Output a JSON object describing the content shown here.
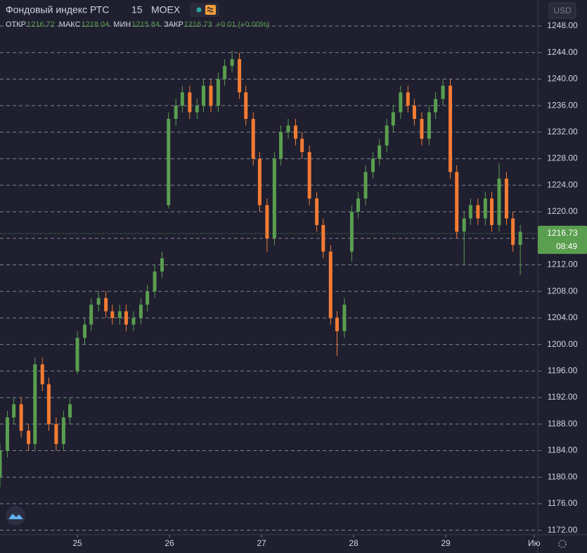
{
  "chart_data": {
    "type": "candlestick",
    "title": "Фондовый индекс РТС",
    "interval": "15",
    "exchange": "MOEX",
    "currency": "USD",
    "legend": {
      "open_label": "ОТКР",
      "open": 1216.72,
      "high_label": "МАКС",
      "high": 1218.04,
      "low_label": "МИН",
      "low": 1215.84,
      "close_label": "ЗАКР",
      "close": 1216.73,
      "change": "+0.01 (+0.00%)"
    },
    "last_price": 1216.73,
    "last_time": "08:49",
    "up_color": "#5a9e4f",
    "down_color": "#f47b32",
    "grid": true,
    "xlim": [
      24.16,
      30.0
    ],
    "xticks": [
      25,
      26,
      27,
      28,
      29,
      {
        "value": 29.96,
        "label": "Ию"
      }
    ],
    "ylim": [
      1171.33,
      1251.92
    ],
    "yticks": [
      {
        "value": 1172,
        "label": "1172.00"
      },
      {
        "value": 1176,
        "label": "1176.00"
      },
      {
        "value": 1180,
        "label": "1180.00"
      },
      {
        "value": 1184,
        "label": "1184.00"
      },
      {
        "value": 1188,
        "label": "1188.00"
      },
      {
        "value": 1192,
        "label": "1192.00"
      },
      {
        "value": 1196,
        "label": "1196.00"
      },
      {
        "value": 1200,
        "label": "1200.00"
      },
      {
        "value": 1204,
        "label": "1204.00"
      },
      {
        "value": 1208,
        "label": "1208.00"
      },
      {
        "value": 1212,
        "label": "1212.00"
      },
      {
        "value": 1216,
        "label": "1216.00"
      },
      {
        "value": 1220,
        "label": "1220.00"
      },
      {
        "value": 1224,
        "label": "1224.00"
      },
      {
        "value": 1228,
        "label": "1228.00"
      },
      {
        "value": 1232,
        "label": "1232.00"
      },
      {
        "value": 1236,
        "label": "1236.00"
      },
      {
        "value": 1240,
        "label": "1240.00"
      },
      {
        "value": 1244,
        "label": "1244.00"
      },
      {
        "value": 1248,
        "label": "1248.00"
      }
    ],
    "x": [
      24.16,
      24.24,
      24.31,
      24.39,
      24.47,
      24.54,
      24.62,
      24.69,
      24.77,
      24.85,
      24.92,
      25.0,
      25.08,
      25.15,
      25.23,
      25.31,
      25.38,
      25.46,
      25.53,
      25.61,
      25.69,
      25.76,
      25.84,
      25.92,
      25.99,
      26.07,
      26.14,
      26.22,
      26.3,
      26.37,
      26.45,
      26.53,
      26.6,
      26.68,
      26.76,
      26.83,
      26.91,
      26.98,
      27.06,
      27.14,
      27.21,
      27.29,
      27.37,
      27.44,
      27.52,
      27.6,
      27.67,
      27.75,
      27.82,
      27.9,
      27.98,
      28.05,
      28.13,
      28.21,
      28.28,
      28.36,
      28.43,
      28.51,
      28.59,
      28.66,
      28.74,
      28.82,
      28.89,
      28.97,
      29.05,
      29.12,
      29.2,
      29.27,
      29.35,
      29.43,
      29.5,
      29.58,
      29.66,
      29.73,
      29.81
    ],
    "open": [
      1180,
      1184,
      1189,
      1191,
      1187,
      1185,
      1197,
      1194,
      1188,
      1185,
      1189,
      1196,
      1201,
      1203,
      1206,
      1207,
      1205,
      1204,
      1205,
      1203,
      1204,
      1206,
      1208,
      1211,
      1221,
      1234,
      1236,
      1238,
      1235,
      1236,
      1239,
      1236,
      1240,
      1242,
      1243,
      1238,
      1234,
      1228,
      1221,
      1216,
      1228,
      1232,
      1233,
      1231,
      1229,
      1222,
      1218,
      1214,
      1204,
      1202,
      1214,
      1220,
      1222,
      1226,
      1228,
      1230,
      1233,
      1235,
      1238,
      1236,
      1234,
      1231,
      1235,
      1237,
      1239,
      1226,
      1217,
      1219,
      1221,
      1219,
      1222,
      1218,
      1225,
      1219,
      1215
    ],
    "high": [
      1185,
      1190,
      1192,
      1192,
      1188,
      1198,
      1198,
      1195,
      1189,
      1190,
      1192,
      1202,
      1204,
      1207,
      1208,
      1208,
      1206,
      1206,
      1206,
      1205,
      1207,
      1209,
      1212,
      1214,
      1235,
      1237,
      1239,
      1239,
      1237,
      1240,
      1240,
      1241,
      1243,
      1244.3,
      1244,
      1239,
      1235,
      1229,
      1222,
      1229,
      1233,
      1234,
      1234,
      1232,
      1230,
      1223,
      1219,
      1215,
      1205,
      1207,
      1221,
      1223,
      1227,
      1229,
      1231,
      1234,
      1236,
      1239,
      1239,
      1237,
      1235,
      1236,
      1238,
      1240,
      1240,
      1227,
      1220,
      1222,
      1222,
      1223,
      1223,
      1227.3,
      1226,
      1220,
      1218
    ],
    "low": [
      1178.5,
      1183,
      1188,
      1186,
      1184,
      1184,
      1193,
      1187,
      1184,
      1184,
      1188,
      1195.5,
      1200,
      1202,
      1205,
      1204,
      1203,
      1203,
      1202,
      1202,
      1203,
      1205,
      1207,
      1210,
      1220.5,
      1233,
      1235,
      1234,
      1234,
      1235,
      1235,
      1235,
      1239,
      1241,
      1237,
      1233,
      1227,
      1220,
      1214,
      1215,
      1227,
      1231,
      1230,
      1228,
      1221,
      1217,
      1213,
      1203,
      1198.3,
      1201,
      1212.5,
      1219,
      1221,
      1225,
      1227,
      1229,
      1232,
      1234,
      1235,
      1233,
      1230,
      1230,
      1234,
      1236,
      1225,
      1216,
      1212,
      1218,
      1218,
      1218,
      1217,
      1217,
      1218,
      1214,
      1210.5
    ],
    "close": [
      1184,
      1189,
      1191,
      1187,
      1185,
      1197,
      1194,
      1188,
      1185,
      1189,
      1191,
      1201,
      1203,
      1206,
      1207,
      1205,
      1204,
      1205,
      1203,
      1204,
      1206,
      1208,
      1211,
      1213,
      1234,
      1236,
      1238,
      1235,
      1236,
      1239,
      1236,
      1240,
      1242,
      1243,
      1238,
      1234,
      1228,
      1221,
      1216,
      1228,
      1232,
      1233,
      1231,
      1229,
      1222,
      1218,
      1214,
      1204,
      1202,
      1206,
      1220,
      1222,
      1226,
      1228,
      1230,
      1233,
      1235,
      1238,
      1236,
      1234,
      1231,
      1235,
      1237,
      1239,
      1226,
      1217,
      1219,
      1221,
      1219,
      1222,
      1218,
      1225,
      1219,
      1215,
      1217
    ]
  }
}
